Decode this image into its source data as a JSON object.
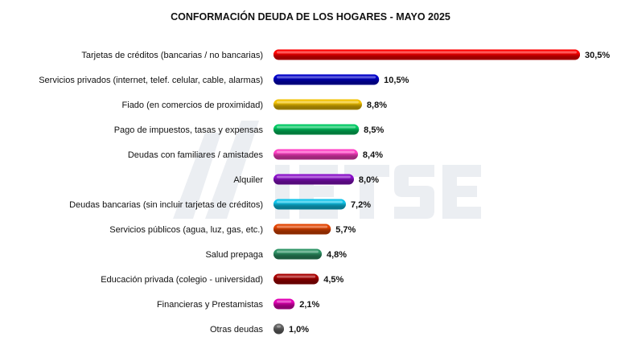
{
  "chart_data": {
    "type": "bar",
    "orientation": "horizontal",
    "title": "CONFORMACIÓN DEUDA DE LOS HOGARES - MAYO 2025",
    "xlabel": "",
    "ylabel": "",
    "xlim": [
      0,
      30.5
    ],
    "grid": false,
    "legend": "none",
    "value_suffix": "%",
    "categories": [
      "Tarjetas de créditos (bancarias / no bancarias)",
      "Servicios privados (internet, telef. celular, cable, alarmas)",
      "Fiado (en comercios de proximidad)",
      "Pago de impuestos, tasas y expensas",
      "Deudas con familiares / amistades",
      "Alquiler",
      "Deudas bancarias (sin incluir tarjetas de créditos)",
      "Servicios públicos (agua, luz, gas, etc.)",
      "Salud prepaga",
      "Educación privada (colegio - universidad)",
      "Financieras y Prestamistas",
      "Otras deudas"
    ],
    "values": [
      30.5,
      10.5,
      8.8,
      8.5,
      8.4,
      8.0,
      7.2,
      5.7,
      4.8,
      4.5,
      2.1,
      1.0
    ],
    "value_labels": [
      "30,5%",
      "10,5%",
      "8,8%",
      "8,5%",
      "8,4%",
      "8,0%",
      "7,2%",
      "5,7%",
      "4,8%",
      "4,5%",
      "2,1%",
      "1,0%"
    ],
    "colors": [
      "#ff0000",
      "#0000c8",
      "#f2c200",
      "#00c862",
      "#ff3fc4",
      "#8a10c8",
      "#10c4ea",
      "#e24400",
      "#2e9466",
      "#a80000",
      "#e200b4",
      "#666666"
    ]
  },
  "watermark": "IIETSE"
}
